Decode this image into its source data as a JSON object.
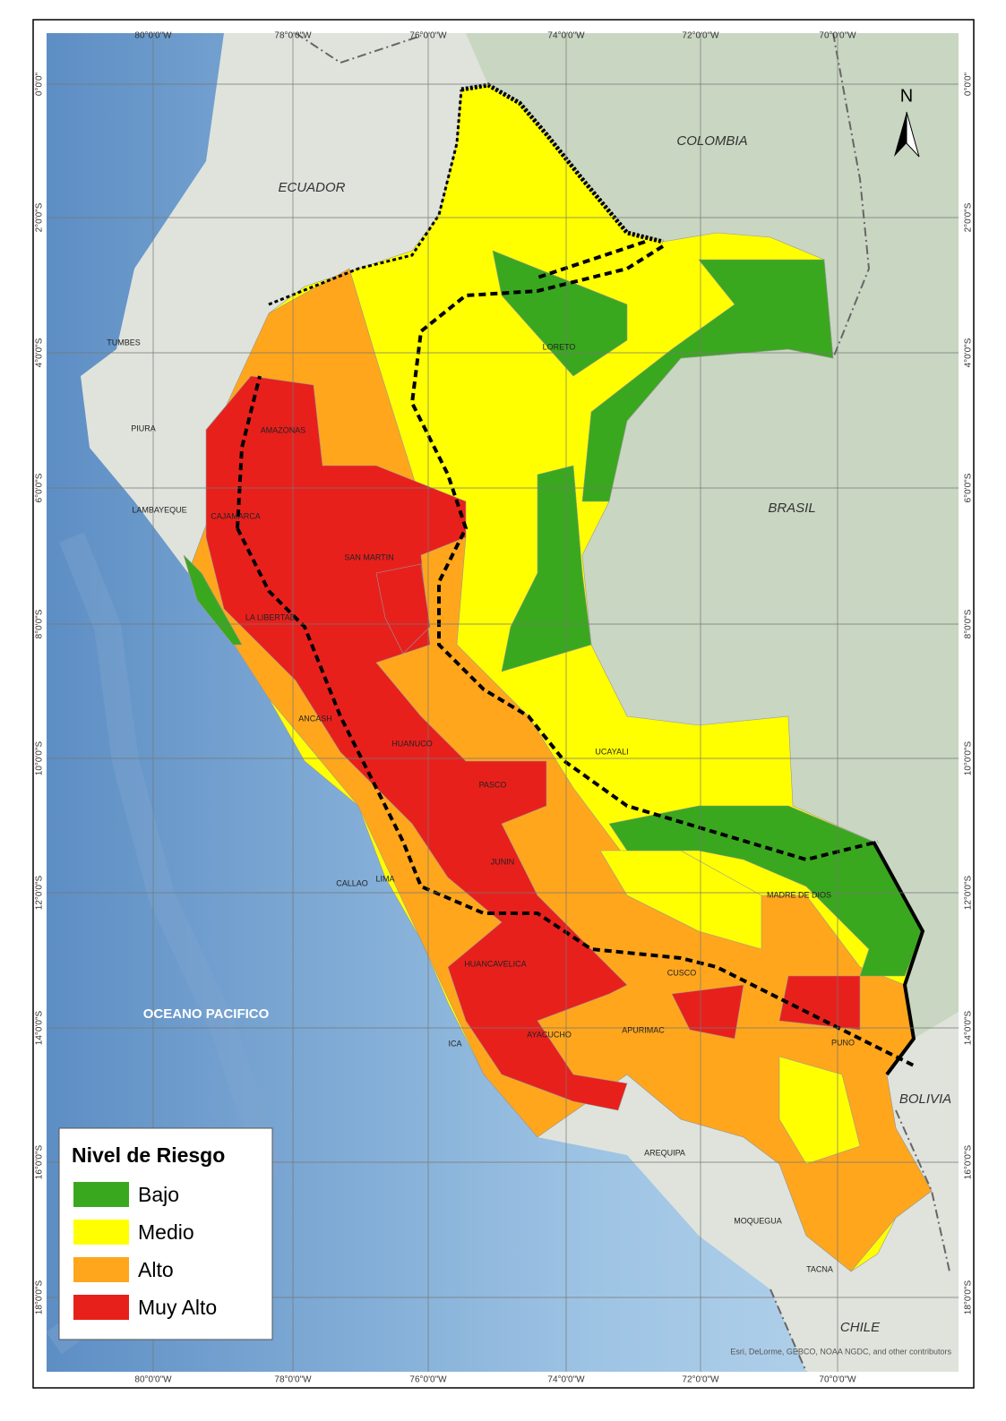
{
  "map": {
    "graticule": {
      "longitudes": [
        "80°0'0\"W",
        "78°0'0\"W",
        "76°0'0\"W",
        "74°0'0\"W",
        "72°0'0\"W",
        "70°0'0\"W"
      ],
      "latitudes": [
        "0°0'0\"",
        "2°0'0\"S",
        "4°0'0\"S",
        "6°0'0\"S",
        "8°0'0\"S",
        "10°0'0\"S",
        "12°0'0\"S",
        "14°0'0\"S",
        "16°0'0\"S",
        "18°0'0\"S"
      ]
    },
    "countries": [
      "ECUADOR",
      "COLOMBIA",
      "BRASIL",
      "BOLIVIA",
      "CHILE"
    ],
    "ocean": "OCEANO PACIFICO",
    "regions": [
      "TUMBES",
      "PIURA",
      "LAMBAYEQUE",
      "CAJAMARCA",
      "AMAZONAS",
      "SAN MARTIN",
      "LORETO",
      "LA LIBERTAD",
      "ANCASH",
      "HUANUCO",
      "PASCO",
      "UCAYALI",
      "JUNIN",
      "LIMA",
      "CALLAO",
      "HUANCAVELICA",
      "ICA",
      "AYACUCHO",
      "APURIMAC",
      "CUSCO",
      "MADRE DE DIOS",
      "PUNO",
      "AREQUIPA",
      "MOQUEGUA",
      "TACNA"
    ],
    "north_arrow": "N",
    "attribution": "Esri, DeLorme, GEBCO, NOAA NGDC, and other contributors"
  },
  "legend": {
    "title": "Nivel de Riesgo",
    "items": [
      {
        "label": "Bajo",
        "color": "#3aa81e"
      },
      {
        "label": "Medio",
        "color": "#ffff00"
      },
      {
        "label": "Alto",
        "color": "#ffa61c"
      },
      {
        "label": "Muy Alto",
        "color": "#e8201c"
      }
    ]
  }
}
